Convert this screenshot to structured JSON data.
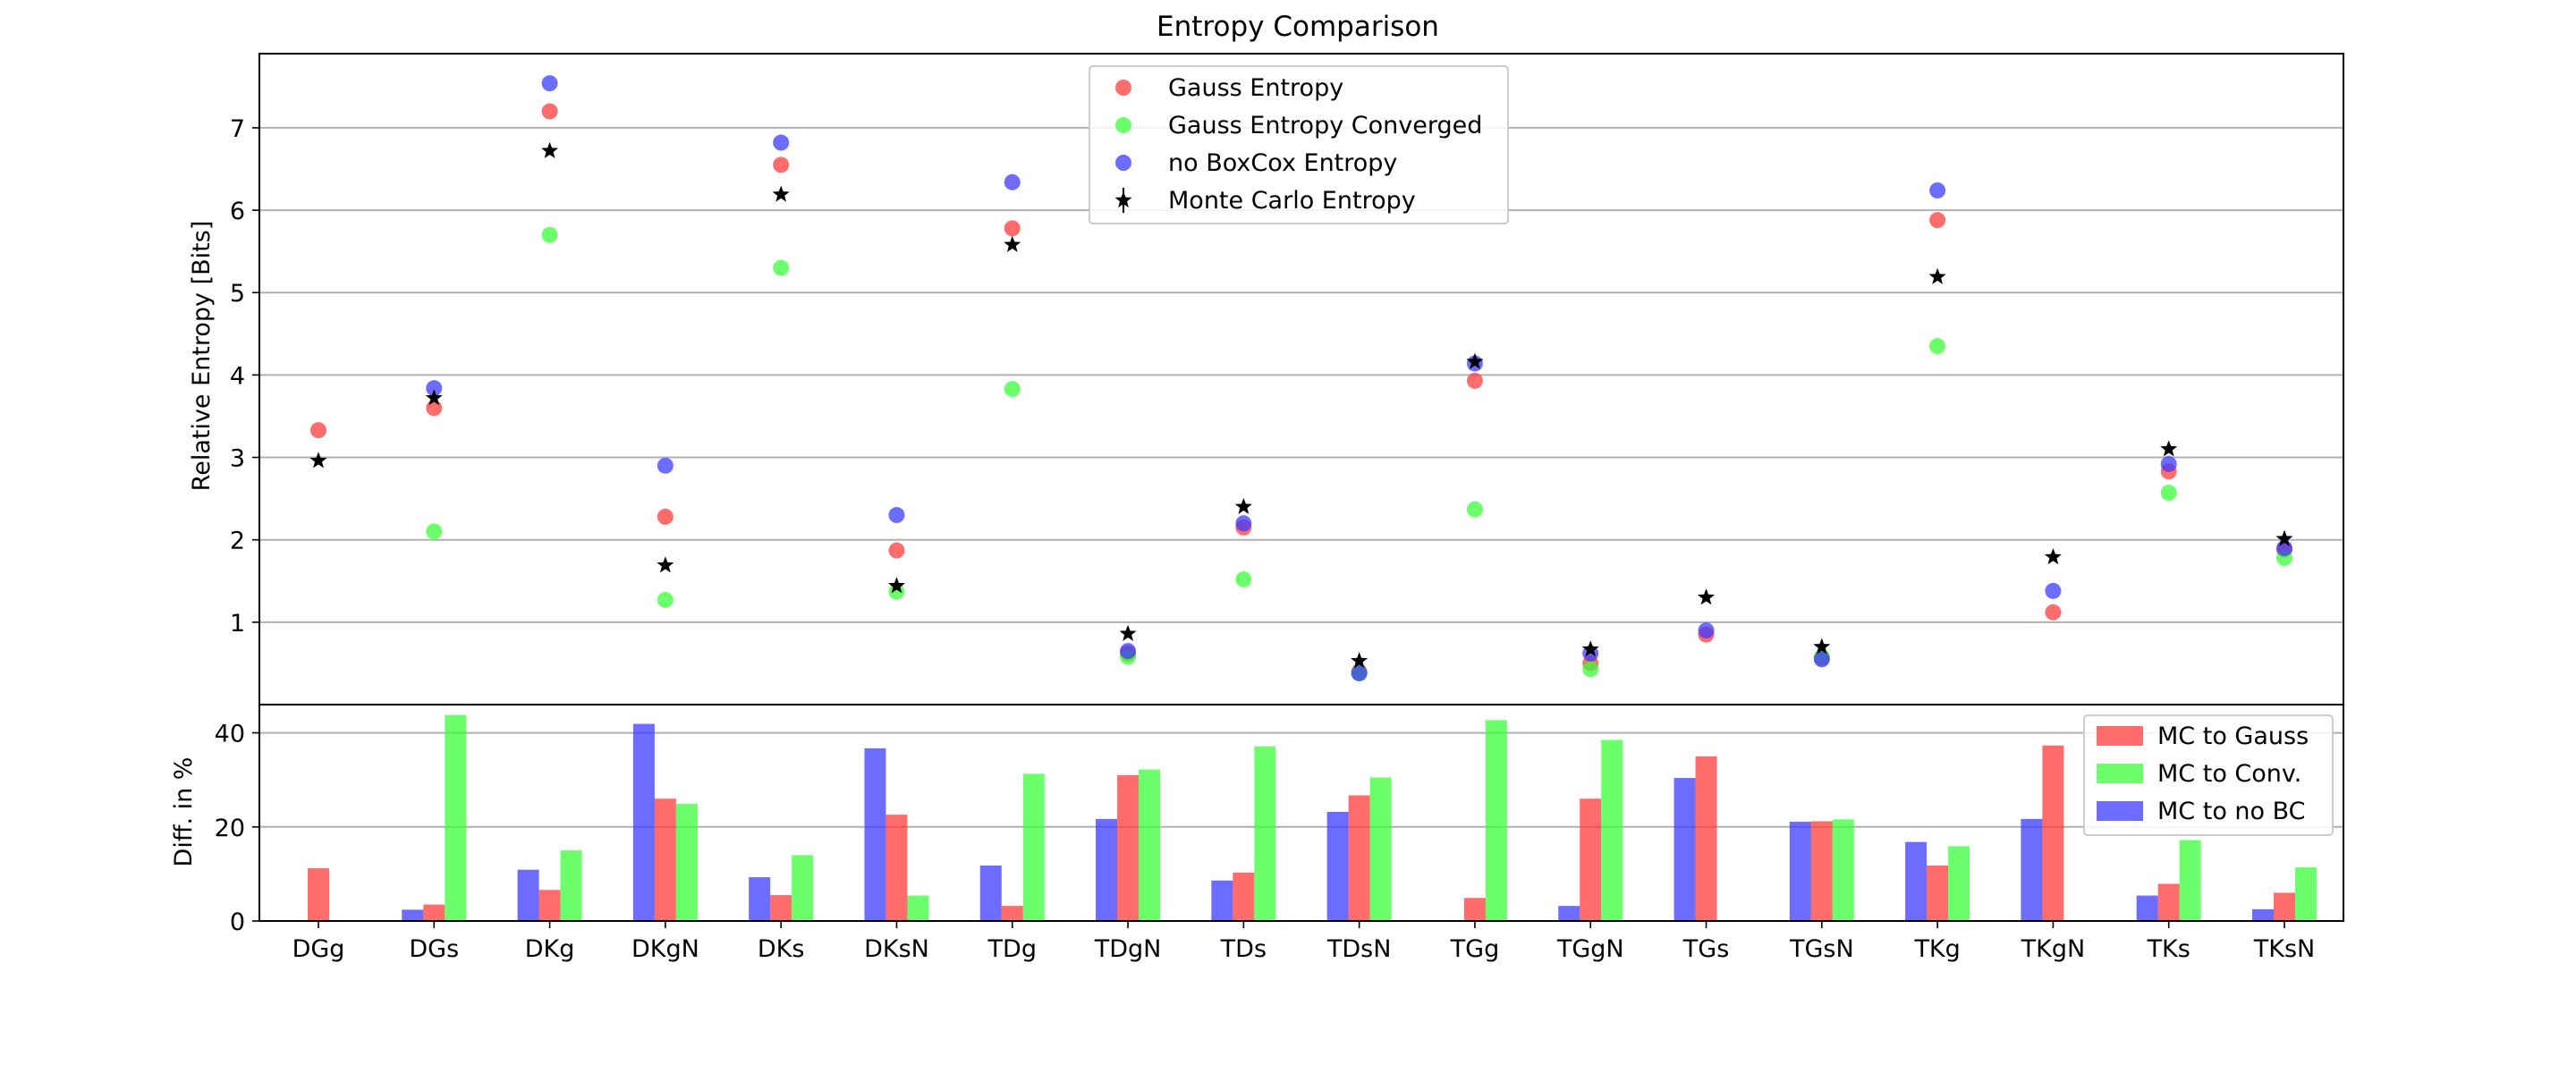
{
  "chart_data": [
    {
      "type": "scatter",
      "title": "Entropy Comparison",
      "xlabel": "",
      "ylabel": "Relative Entropy [Bits]",
      "ylim": [
        0,
        7.9
      ],
      "yticks": [
        1,
        2,
        3,
        4,
        5,
        6,
        7
      ],
      "grid": "horizontal",
      "legend_position": "top-center",
      "categories": [
        "DGg",
        "DGs",
        "DKg",
        "DKgN",
        "DKs",
        "DKsN",
        "TDg",
        "TDgN",
        "TDs",
        "TDsN",
        "TGg",
        "TGgN",
        "TGs",
        "TGsN",
        "TKg",
        "TKgN",
        "TKs",
        "TKsN"
      ],
      "series": [
        {
          "name": "Gauss Entropy",
          "color": "#ff3b3b",
          "marker": "circle",
          "values": [
            3.33,
            3.6,
            7.2,
            2.28,
            6.55,
            1.87,
            5.78,
            0.62,
            2.15,
            0.4,
            3.93,
            0.5,
            0.85,
            0.57,
            5.88,
            1.12,
            2.83,
            1.88
          ]
        },
        {
          "name": "Gauss Entropy Converged",
          "color": "#3bff3b",
          "marker": "circle",
          "values": [
            null,
            2.1,
            5.7,
            1.27,
            5.3,
            1.37,
            3.83,
            0.58,
            1.52,
            0.38,
            2.37,
            0.43,
            null,
            0.58,
            4.35,
            null,
            2.57,
            1.78
          ]
        },
        {
          "name": "no BoxCox Entropy",
          "color": "#3b3bff",
          "marker": "circle",
          "values": [
            null,
            3.84,
            7.54,
            2.9,
            6.82,
            2.3,
            6.34,
            0.65,
            2.2,
            0.38,
            4.14,
            0.62,
            0.9,
            0.55,
            6.24,
            1.38,
            2.92,
            1.9
          ]
        },
        {
          "name": "Monte Carlo Entropy",
          "color": "#000000",
          "marker": "star",
          "values": [
            2.96,
            3.72,
            6.72,
            1.69,
            6.19,
            1.44,
            5.58,
            0.86,
            2.4,
            0.53,
            4.16,
            0.67,
            1.3,
            0.7,
            5.19,
            1.79,
            3.1,
            2.01
          ]
        }
      ]
    },
    {
      "type": "bar",
      "title": "",
      "xlabel": "",
      "ylabel": "Diff. in %",
      "ylim": [
        0,
        46
      ],
      "yticks": [
        0,
        20,
        40
      ],
      "grid": "horizontal",
      "legend_position": "top-right",
      "categories": [
        "DGg",
        "DGs",
        "DKg",
        "DKgN",
        "DKs",
        "DKsN",
        "TDg",
        "TDgN",
        "TDs",
        "TDsN",
        "TGg",
        "TGgN",
        "TGs",
        "TGsN",
        "TKg",
        "TKgN",
        "TKs",
        "TKsN"
      ],
      "series": [
        {
          "name": "MC to Gauss",
          "color": "#ff3b3b",
          "values": [
            11.2,
            3.5,
            6.6,
            26,
            5.5,
            22.6,
            3.2,
            31,
            10.3,
            26.7,
            4.9,
            26,
            35,
            21.2,
            11.8,
            37.3,
            7.9,
            6
          ]
        },
        {
          "name": "MC to Conv.",
          "color": "#3bff3b",
          "values": [
            0,
            43.8,
            15,
            24.9,
            14,
            5.4,
            31.3,
            32.2,
            37.1,
            30.5,
            42.7,
            38.5,
            0,
            21.6,
            15.9,
            0,
            17.2,
            11.4
          ]
        },
        {
          "name": "MC to no BC",
          "color": "#3b3bff",
          "values": [
            0,
            2.4,
            10.9,
            41.9,
            9.3,
            36.7,
            11.8,
            21.7,
            8.6,
            23.2,
            0,
            3.2,
            30.4,
            21.1,
            16.8,
            21.7,
            5.4,
            2.5
          ]
        }
      ]
    }
  ]
}
